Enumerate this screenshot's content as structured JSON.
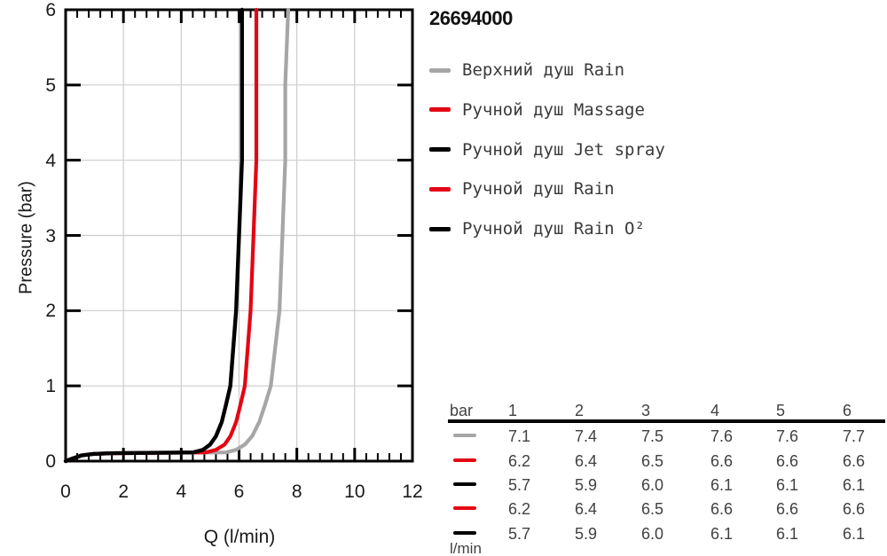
{
  "title": "26694000",
  "chart_data": {
    "type": "line",
    "title": "26694000",
    "xlabel": "Q (l/min)",
    "ylabel": "Pressure (bar)",
    "xlim": [
      0,
      12
    ],
    "ylim": [
      0,
      6
    ],
    "xticks": [
      0,
      2,
      4,
      6,
      8,
      10,
      12
    ],
    "xtick_labels": [
      "0",
      "2",
      "4",
      "6",
      "8",
      "10",
      "12"
    ],
    "x_minor_tick_step": 0.4,
    "yticks": [
      0,
      1,
      2,
      3,
      4,
      5,
      6
    ],
    "ytick_labels": [
      "0",
      "1",
      "2",
      "3",
      "4",
      "5",
      "6"
    ],
    "grid": true,
    "grid_color": "#cccccc",
    "legend_position": "right",
    "series": [
      {
        "name": "Верхний душ Rain",
        "color": "#a6a6a6",
        "pressure_bar": [
          1,
          2,
          3,
          4,
          5,
          6
        ],
        "flow_l_min": [
          7.1,
          7.4,
          7.5,
          7.6,
          7.6,
          7.7
        ]
      },
      {
        "name": "Ручной душ Massage",
        "color": "#e30613",
        "pressure_bar": [
          1,
          2,
          3,
          4,
          5,
          6
        ],
        "flow_l_min": [
          6.2,
          6.4,
          6.5,
          6.6,
          6.6,
          6.6
        ]
      },
      {
        "name": "Ручной душ Jet spray",
        "color": "#000000",
        "pressure_bar": [
          1,
          2,
          3,
          4,
          5,
          6
        ],
        "flow_l_min": [
          5.7,
          5.9,
          6.0,
          6.1,
          6.1,
          6.1
        ]
      },
      {
        "name": "Ручной душ Rain",
        "color": "#e30613",
        "pressure_bar": [
          1,
          2,
          3,
          4,
          5,
          6
        ],
        "flow_l_min": [
          6.2,
          6.4,
          6.5,
          6.6,
          6.6,
          6.6
        ]
      },
      {
        "name": "Ручной душ Rain O²",
        "color": "#000000",
        "pressure_bar": [
          1,
          2,
          3,
          4,
          5,
          6
        ],
        "flow_l_min": [
          5.7,
          5.9,
          6.0,
          6.1,
          6.1,
          6.1
        ]
      }
    ],
    "visual_curves": [
      {
        "color": "#a6a6a6",
        "width": 4.2,
        "points": [
          [
            0,
            0
          ],
          [
            0.25,
            0.035
          ],
          [
            0.55,
            0.075
          ],
          [
            0.95,
            0.095
          ],
          [
            1.6,
            0.105
          ],
          [
            5.55,
            0.115
          ],
          [
            5.9,
            0.15
          ],
          [
            6.2,
            0.22
          ],
          [
            6.45,
            0.33
          ],
          [
            6.7,
            0.52
          ],
          [
            6.9,
            0.75
          ],
          [
            7.1,
            1
          ],
          [
            7.4,
            2
          ],
          [
            7.5,
            3
          ],
          [
            7.6,
            4
          ],
          [
            7.6,
            5
          ],
          [
            7.7,
            6
          ]
        ]
      },
      {
        "color": "#e30613",
        "width": 4.2,
        "points": [
          [
            0,
            0
          ],
          [
            0.25,
            0.035
          ],
          [
            0.55,
            0.075
          ],
          [
            0.95,
            0.095
          ],
          [
            1.6,
            0.105
          ],
          [
            4.85,
            0.115
          ],
          [
            5.2,
            0.15
          ],
          [
            5.5,
            0.22
          ],
          [
            5.7,
            0.33
          ],
          [
            5.9,
            0.52
          ],
          [
            6.05,
            0.75
          ],
          [
            6.2,
            1
          ],
          [
            6.4,
            2
          ],
          [
            6.5,
            3
          ],
          [
            6.6,
            4
          ],
          [
            6.6,
            5
          ],
          [
            6.6,
            6
          ]
        ]
      },
      {
        "color": "#000000",
        "width": 4.4,
        "points": [
          [
            0,
            0
          ],
          [
            0.25,
            0.035
          ],
          [
            0.55,
            0.075
          ],
          [
            0.95,
            0.095
          ],
          [
            1.6,
            0.105
          ],
          [
            4.4,
            0.115
          ],
          [
            4.75,
            0.15
          ],
          [
            5.0,
            0.22
          ],
          [
            5.2,
            0.33
          ],
          [
            5.4,
            0.52
          ],
          [
            5.55,
            0.75
          ],
          [
            5.7,
            1
          ],
          [
            5.9,
            2
          ],
          [
            6.0,
            3
          ],
          [
            6.1,
            4
          ],
          [
            6.1,
            5
          ],
          [
            6.1,
            6
          ]
        ]
      }
    ]
  },
  "legend": {
    "items": [
      {
        "label": "Верхний душ Rain",
        "color": "#a6a6a6"
      },
      {
        "label": "Ручной душ Massage",
        "color": "#e30613"
      },
      {
        "label": "Ручной душ Jet spray",
        "color": "#000000"
      },
      {
        "label": "Ручной душ Rain",
        "color": "#e30613"
      },
      {
        "label": "Ручной душ Rain O²",
        "color": "#000000"
      }
    ]
  },
  "table": {
    "corner_header": "bar",
    "columns": [
      "1",
      "2",
      "3",
      "4",
      "5",
      "6"
    ],
    "unit_footer": "l/min",
    "rows": [
      {
        "swatch_color": "#a6a6a6",
        "values": [
          "7.1",
          "7.4",
          "7.5",
          "7.6",
          "7.6",
          "7.7"
        ]
      },
      {
        "swatch_color": "#e30613",
        "values": [
          "6.2",
          "6.4",
          "6.5",
          "6.6",
          "6.6",
          "6.6"
        ]
      },
      {
        "swatch_color": "#000000",
        "values": [
          "5.7",
          "5.9",
          "6.0",
          "6.1",
          "6.1",
          "6.1"
        ]
      },
      {
        "swatch_color": "#e30613",
        "values": [
          "6.2",
          "6.4",
          "6.5",
          "6.6",
          "6.6",
          "6.6"
        ]
      },
      {
        "swatch_color": "#000000",
        "values": [
          "5.7",
          "5.9",
          "6.0",
          "6.1",
          "6.1",
          "6.1"
        ]
      }
    ]
  },
  "colors": {
    "red": "#e30613",
    "gray": "#a6a6a6",
    "black": "#000000",
    "grid": "#cccccc",
    "frame": "#000000",
    "text": "#1a1a1a",
    "table_text": "#414141"
  }
}
